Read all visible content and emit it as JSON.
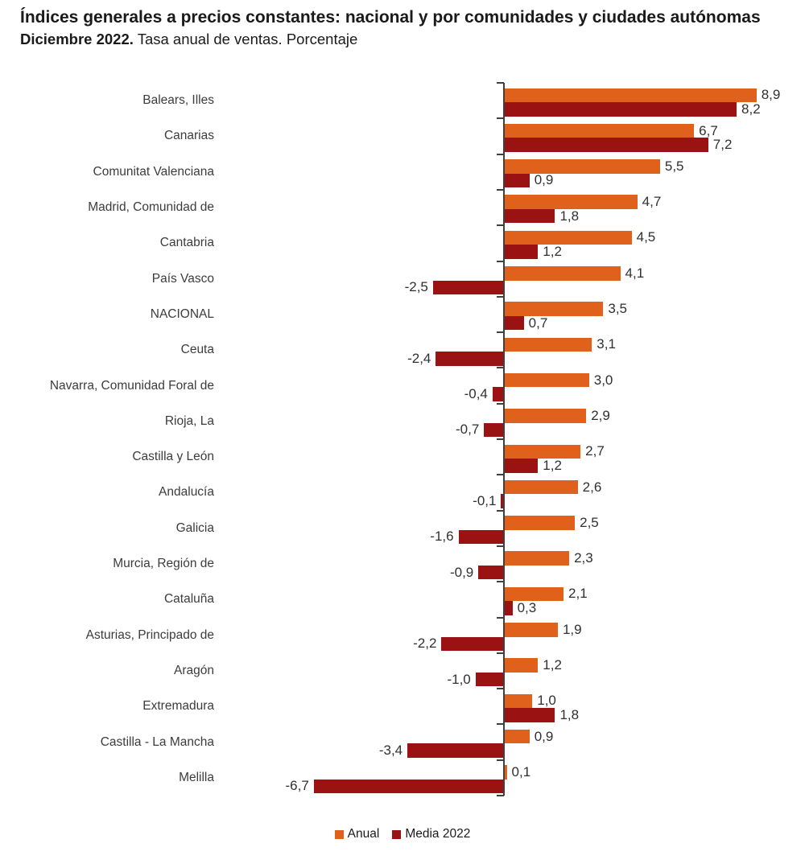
{
  "header": {
    "title": "Índices generales a precios constantes: nacional y por comunidades y ciudades autónomas",
    "subtitle_bold": "Diciembre 2022.",
    "subtitle_rest": " Tasa anual de ventas. Porcentaje"
  },
  "legend": [
    {
      "label": "Anual",
      "color": "#E0611B"
    },
    {
      "label": "Media 2022",
      "color": "#9A1312"
    }
  ],
  "chart_data": {
    "type": "bar",
    "orientation": "horizontal",
    "title": "Índices generales a precios constantes: nacional y por comunidades y ciudades autónomas",
    "subtitle": "Diciembre 2022. Tasa anual de ventas. Porcentaje",
    "categories": [
      "Balears, Illes",
      "Canarias",
      "Comunitat Valenciana",
      "Madrid, Comunidad de",
      "Cantabria",
      "País Vasco",
      "NACIONAL",
      "Ceuta",
      "Navarra, Comunidad Foral de",
      "Rioja, La",
      "Castilla y León",
      "Andalucía",
      "Galicia",
      "Murcia, Región de",
      "Cataluña",
      "Asturias, Principado de",
      "Aragón",
      "Extremadura",
      "Castilla - La Mancha",
      "Melilla"
    ],
    "series": [
      {
        "name": "Anual",
        "color": "#E0611B",
        "values": [
          8.9,
          6.7,
          5.5,
          4.7,
          4.5,
          4.1,
          3.5,
          3.1,
          3.0,
          2.9,
          2.7,
          2.6,
          2.5,
          2.3,
          2.1,
          1.9,
          1.2,
          1.0,
          0.9,
          0.1
        ]
      },
      {
        "name": "Media 2022",
        "color": "#9A1312",
        "values": [
          8.2,
          7.2,
          0.9,
          1.8,
          1.2,
          -2.5,
          0.7,
          -2.4,
          -0.4,
          -0.7,
          1.2,
          -0.1,
          -1.6,
          -0.9,
          0.3,
          -2.2,
          -1.0,
          1.8,
          -3.4,
          -6.7
        ]
      }
    ],
    "value_format": "one-decimal-comma",
    "xlim": [
      -7.5,
      9.5
    ],
    "zero_line": true,
    "ticks": "category-boundaries",
    "legend_position": "bottom",
    "grid": false
  }
}
